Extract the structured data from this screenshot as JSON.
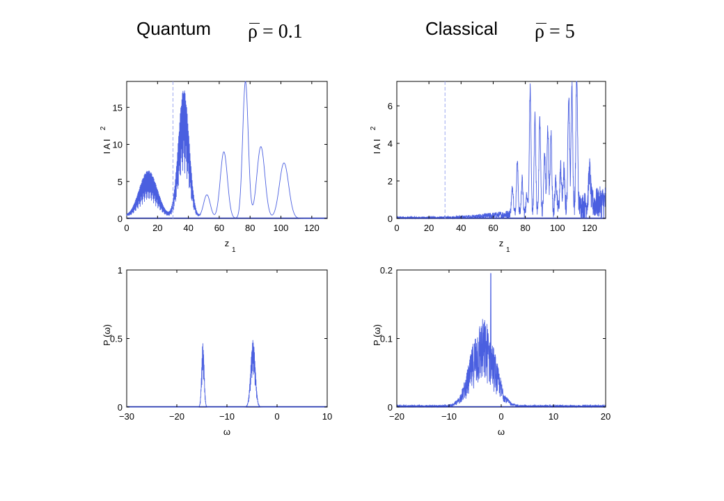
{
  "header": {
    "quantum_title": "Quantum",
    "quantum_rho": "ρ = 0.1",
    "classical_title": "Classical",
    "classical_rho": "ρ = 5"
  },
  "colors": {
    "line": "#4a5fe0",
    "dashed": "#9aa6f0",
    "axis": "#000000"
  },
  "chart_data": [
    {
      "id": "quantum-intensity",
      "type": "line",
      "title": "",
      "xlabel": "z",
      "xlabel_sub": "1",
      "ylabel": "I A I",
      "ylabel_sup": "2",
      "xlim": [
        0,
        130
      ],
      "ylim": [
        0,
        18.5
      ],
      "xticks": [
        0,
        20,
        40,
        60,
        80,
        100,
        120
      ],
      "yticks": [
        0,
        5,
        10,
        15
      ],
      "vline": 30,
      "peaks": [
        {
          "center": 14,
          "height": 6.5,
          "width": 6,
          "fill": true
        },
        {
          "center": 37,
          "height": 17.5,
          "width": 3.5,
          "fill": true
        },
        {
          "center": 52,
          "height": 3.2,
          "width": 2.2,
          "fill": false
        },
        {
          "center": 63,
          "height": 9.0,
          "width": 2.3,
          "fill": false
        },
        {
          "center": 77,
          "height": 18.5,
          "width": 1.8,
          "fill": false
        },
        {
          "center": 87,
          "height": 9.7,
          "width": 2.6,
          "fill": false
        },
        {
          "center": 102,
          "height": 7.5,
          "width": 3.0,
          "fill": false
        }
      ],
      "baseline": 0.8
    },
    {
      "id": "classical-intensity",
      "type": "line",
      "title": "",
      "xlabel": "z",
      "xlabel_sub": "1",
      "ylabel": "I A I",
      "ylabel_sup": "2",
      "xlim": [
        0,
        130
      ],
      "ylim": [
        0,
        7.3
      ],
      "xticks": [
        0,
        20,
        40,
        60,
        80,
        100,
        120
      ],
      "yticks": [
        0,
        2,
        4,
        6
      ],
      "vline": 30,
      "peaks": [
        {
          "center": 72,
          "height": 1.4,
          "width": 0.6
        },
        {
          "center": 75,
          "height": 2.8,
          "width": 0.5
        },
        {
          "center": 78,
          "height": 1.8,
          "width": 0.5
        },
        {
          "center": 81,
          "height": 1.0,
          "width": 0.5
        },
        {
          "center": 83,
          "height": 6.6,
          "width": 0.5
        },
        {
          "center": 86,
          "height": 5.0,
          "width": 0.5
        },
        {
          "center": 89,
          "height": 4.9,
          "width": 0.5
        },
        {
          "center": 92,
          "height": 3.0,
          "width": 0.5
        },
        {
          "center": 94,
          "height": 4.4,
          "width": 0.5
        },
        {
          "center": 96,
          "height": 4.0,
          "width": 0.5
        },
        {
          "center": 99,
          "height": 1.6,
          "width": 0.5
        },
        {
          "center": 102,
          "height": 2.2,
          "width": 0.5
        },
        {
          "center": 104,
          "height": 2.0,
          "width": 0.5
        },
        {
          "center": 107,
          "height": 6.2,
          "width": 0.5
        },
        {
          "center": 109,
          "height": 6.4,
          "width": 0.5
        },
        {
          "center": 112,
          "height": 7.3,
          "width": 0.5
        },
        {
          "center": 120,
          "height": 1.8,
          "width": 0.6
        }
      ],
      "noise_start": 0,
      "noise_amp": 0.1,
      "noise_growth": 65
    },
    {
      "id": "quantum-spectrum",
      "type": "line",
      "title": "",
      "xlabel": "ω",
      "ylabel": "P (ω)",
      "xlim": [
        -30,
        10
      ],
      "ylim": [
        0,
        1
      ],
      "xticks": [
        -30,
        -20,
        -10,
        0,
        10
      ],
      "yticks": [
        0,
        0.5,
        1
      ],
      "xtick_labels": [
        "−30",
        "−20",
        "−10",
        "0",
        "10"
      ],
      "ytick_labels": [
        "0",
        "0.5",
        "1"
      ],
      "peaks": [
        {
          "center": -14.8,
          "height": 0.47,
          "width": 0.25,
          "fill": true
        },
        {
          "center": -4.8,
          "height": 0.49,
          "width": 0.45,
          "fill": true
        }
      ]
    },
    {
      "id": "classical-spectrum",
      "type": "line",
      "title": "",
      "xlabel": "ω",
      "ylabel": "P (ω)",
      "xlim": [
        -20,
        20
      ],
      "ylim": [
        0,
        0.2
      ],
      "xticks": [
        -20,
        -10,
        0,
        10,
        20
      ],
      "yticks": [
        0,
        0.1,
        0.2
      ],
      "xtick_labels": [
        "−20",
        "−10",
        "0",
        "10",
        "20"
      ],
      "ytick_labels": [
        "0",
        "0.1",
        "0.2"
      ],
      "envelope": {
        "center": -3.5,
        "height": 0.08,
        "width": 3.2
      },
      "spike_x": -2.0,
      "spike_y": 0.195
    }
  ]
}
